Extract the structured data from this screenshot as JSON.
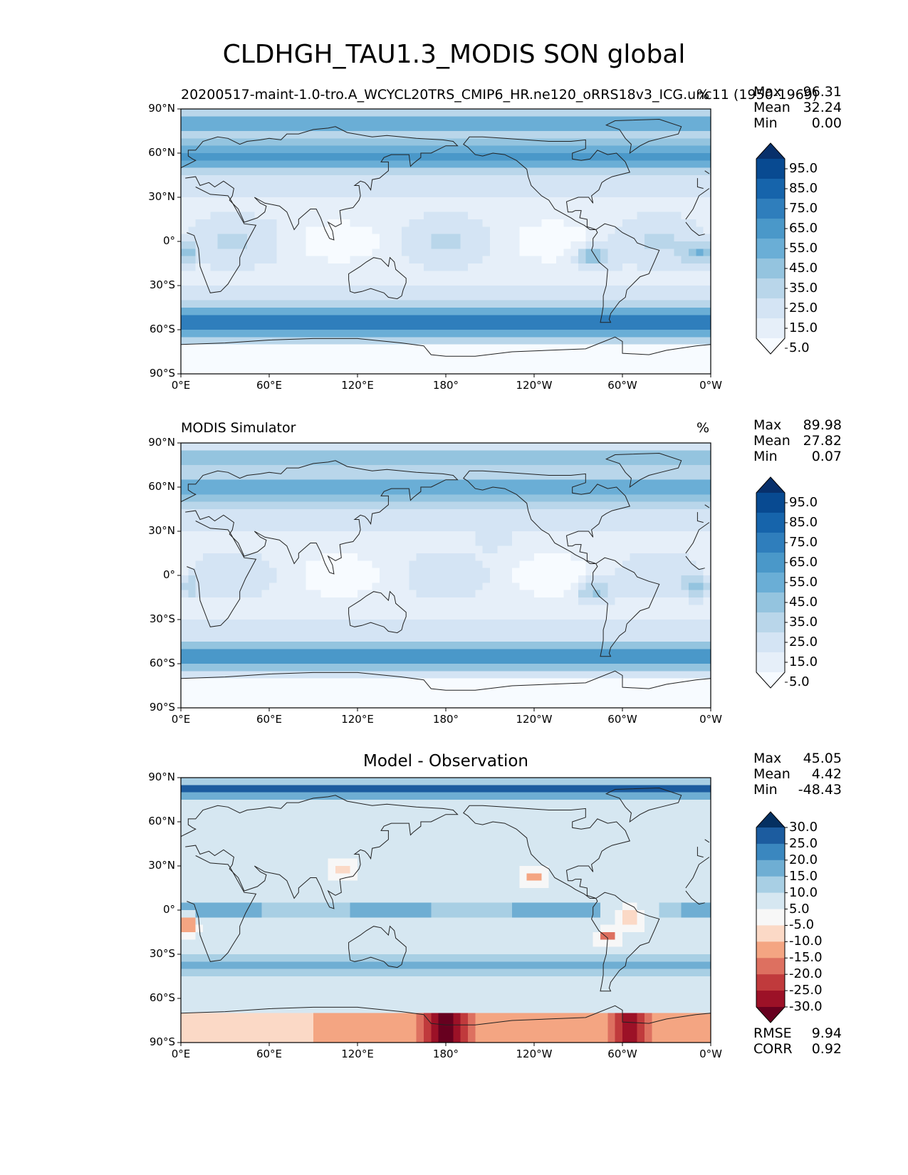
{
  "title": "CLDHGH_TAU1.3_MODIS SON global",
  "lat_ticks": [
    "90°N",
    "60°N",
    "30°N",
    "0°",
    "30°S",
    "60°S",
    "90°S"
  ],
  "lon_ticks": [
    "0°E",
    "60°E",
    "120°E",
    "180°",
    "120°W",
    "60°W",
    "0°W"
  ],
  "panels": [
    {
      "left_title": "20200517-maint-1.0-tro.A_WCYCL20TRS_CMIP6_HR.ne120_oRRS18v3_ICG.unc11 (1950-1969)",
      "center_title": "",
      "units": "%",
      "stats": [
        {
          "label": "Max",
          "value": "96.31"
        },
        {
          "label": "Mean",
          "value": "32.24"
        },
        {
          "label": "Min",
          "value": "0.00"
        }
      ],
      "colorbar": {
        "labels": [
          "95.0",
          "85.0",
          "75.0",
          "65.0",
          "55.0",
          "45.0",
          "35.0",
          "25.0",
          "15.0",
          "5.0"
        ],
        "colors": [
          "#08306b",
          "#084a91",
          "#1664ab",
          "#2f7ebc",
          "#4a98c9",
          "#6aaed6",
          "#94c4df",
          "#b9d6ea",
          "#d4e4f4",
          "#e6eff9",
          "#f7fbff"
        ]
      }
    },
    {
      "left_title": "MODIS Simulator",
      "center_title": "",
      "units": "%",
      "stats": [
        {
          "label": "Max",
          "value": "89.98"
        },
        {
          "label": "Mean",
          "value": "27.82"
        },
        {
          "label": "Min",
          "value": "0.07"
        }
      ],
      "colorbar": {
        "labels": [
          "95.0",
          "85.0",
          "75.0",
          "65.0",
          "55.0",
          "45.0",
          "35.0",
          "25.0",
          "15.0",
          "5.0"
        ],
        "colors": [
          "#08306b",
          "#084a91",
          "#1664ab",
          "#2f7ebc",
          "#4a98c9",
          "#6aaed6",
          "#94c4df",
          "#b9d6ea",
          "#d4e4f4",
          "#e6eff9",
          "#f7fbff"
        ]
      }
    },
    {
      "left_title": "",
      "center_title": "Model - Observation",
      "units": "",
      "stats": [
        {
          "label": "Max",
          "value": "45.05"
        },
        {
          "label": "Mean",
          "value": "4.42"
        },
        {
          "label": "Min",
          "value": "-48.43"
        }
      ],
      "metrics": [
        {
          "label": "RMSE",
          "value": "9.94"
        },
        {
          "label": "CORR",
          "value": "0.92"
        }
      ],
      "colorbar": {
        "labels": [
          "30.0",
          "25.0",
          "20.0",
          "15.0",
          "10.0",
          "5.0",
          "-5.0",
          "-10.0",
          "-15.0",
          "-20.0",
          "-25.0",
          "-30.0"
        ],
        "colors": [
          "#053061",
          "#1c5c9f",
          "#3a87bf",
          "#6faed3",
          "#a8cfe4",
          "#d6e7f1",
          "#f7f7f7",
          "#fbd9c6",
          "#f4a582",
          "#dd7060",
          "#c03a3c",
          "#9c1127",
          "#67001f"
        ]
      }
    }
  ]
}
